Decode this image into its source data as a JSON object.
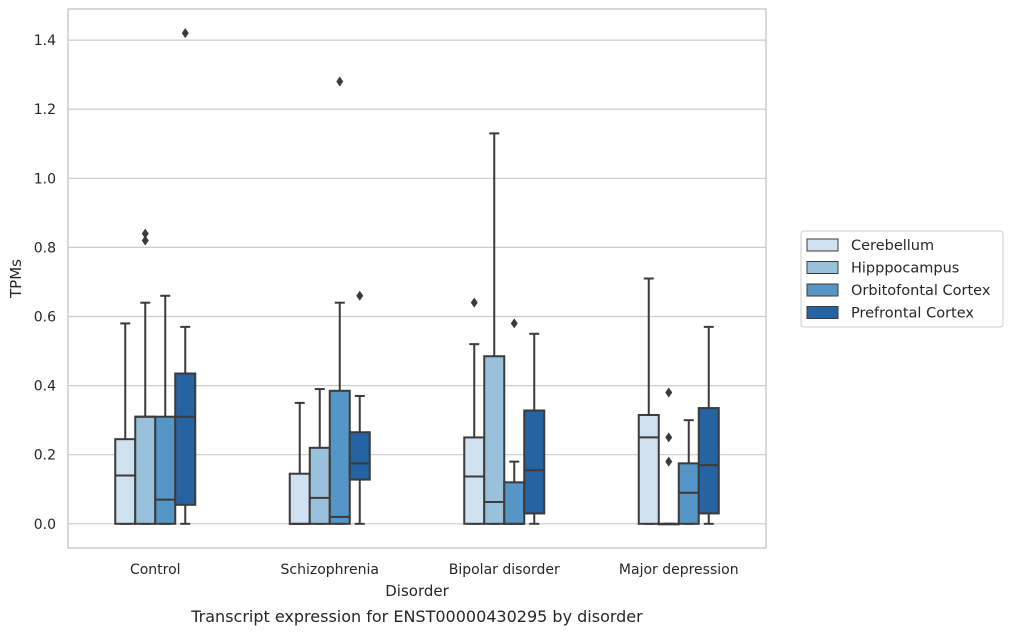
{
  "chart_data": {
    "type": "boxplot",
    "title": "",
    "caption": "Transcript expression for ENST00000430295 by disorder",
    "xlabel": "Disorder",
    "ylabel": "TPMs",
    "ylim": [
      -0.07,
      1.49
    ],
    "yticks": [
      0.0,
      0.2,
      0.4,
      0.6,
      0.8,
      1.0,
      1.2,
      1.4
    ],
    "ytick_labels": [
      "0.0",
      "0.2",
      "0.4",
      "0.6",
      "0.8",
      "1.0",
      "1.2",
      "1.4"
    ],
    "grid": "horizontal",
    "legend_position": "right",
    "categories": [
      "Control",
      "Schizophrenia",
      "Bipolar disorder",
      "Major depression"
    ],
    "series": [
      {
        "name": "Cerebellum",
        "color": "#d0e1f2",
        "boxes": [
          {
            "whislo": 0.0,
            "q1": 0.0,
            "med": 0.14,
            "q3": 0.245,
            "whishi": 0.58,
            "fliers": []
          },
          {
            "whislo": 0.0,
            "q1": 0.0,
            "med": 0.0,
            "q3": 0.145,
            "whishi": 0.35,
            "fliers": []
          },
          {
            "whislo": 0.0,
            "q1": 0.0,
            "med": 0.137,
            "q3": 0.25,
            "whishi": 0.52,
            "fliers": [
              0.64
            ]
          },
          {
            "whislo": 0.0,
            "q1": 0.0,
            "med": 0.25,
            "q3": 0.315,
            "whishi": 0.71,
            "fliers": []
          }
        ]
      },
      {
        "name": "Hipppocampus",
        "color": "#9ac1dc",
        "boxes": [
          {
            "whislo": 0.0,
            "q1": 0.0,
            "med": 0.31,
            "q3": 0.31,
            "whishi": 0.64,
            "fliers": [
              0.82,
              0.84
            ]
          },
          {
            "whislo": 0.0,
            "q1": 0.0,
            "med": 0.075,
            "q3": 0.22,
            "whishi": 0.39,
            "fliers": []
          },
          {
            "whislo": 0.0,
            "q1": 0.0,
            "med": 0.063,
            "q3": 0.485,
            "whishi": 1.13,
            "fliers": []
          },
          {
            "whislo": 0.0,
            "q1": 0.0,
            "med": 0.0,
            "q3": 0.0,
            "whishi": 0.0,
            "fliers": [
              0.18,
              0.25,
              0.38
            ]
          }
        ]
      },
      {
        "name": "Orbitofontal Cortex",
        "color": "#5596c6",
        "boxes": [
          {
            "whislo": 0.0,
            "q1": 0.0,
            "med": 0.07,
            "q3": 0.31,
            "whishi": 0.66,
            "fliers": []
          },
          {
            "whislo": 0.0,
            "q1": 0.0,
            "med": 0.02,
            "q3": 0.385,
            "whishi": 0.64,
            "fliers": [
              1.28
            ]
          },
          {
            "whislo": 0.0,
            "q1": 0.0,
            "med": 0.0,
            "q3": 0.12,
            "whishi": 0.18,
            "fliers": [
              0.58
            ]
          },
          {
            "whislo": 0.0,
            "q1": 0.0,
            "med": 0.09,
            "q3": 0.175,
            "whishi": 0.3,
            "fliers": []
          }
        ]
      },
      {
        "name": "Prefrontal Cortex",
        "color": "#2563a3",
        "boxes": [
          {
            "whislo": 0.0,
            "q1": 0.055,
            "med": 0.31,
            "q3": 0.435,
            "whishi": 0.57,
            "fliers": [
              1.42
            ]
          },
          {
            "whislo": 0.0,
            "q1": 0.128,
            "med": 0.175,
            "q3": 0.265,
            "whishi": 0.37,
            "fliers": [
              0.66
            ]
          },
          {
            "whislo": 0.0,
            "q1": 0.03,
            "med": 0.155,
            "q3": 0.328,
            "whishi": 0.55,
            "fliers": []
          },
          {
            "whislo": 0.0,
            "q1": 0.03,
            "med": 0.17,
            "q3": 0.335,
            "whishi": 0.57,
            "fliers": []
          }
        ]
      }
    ]
  }
}
